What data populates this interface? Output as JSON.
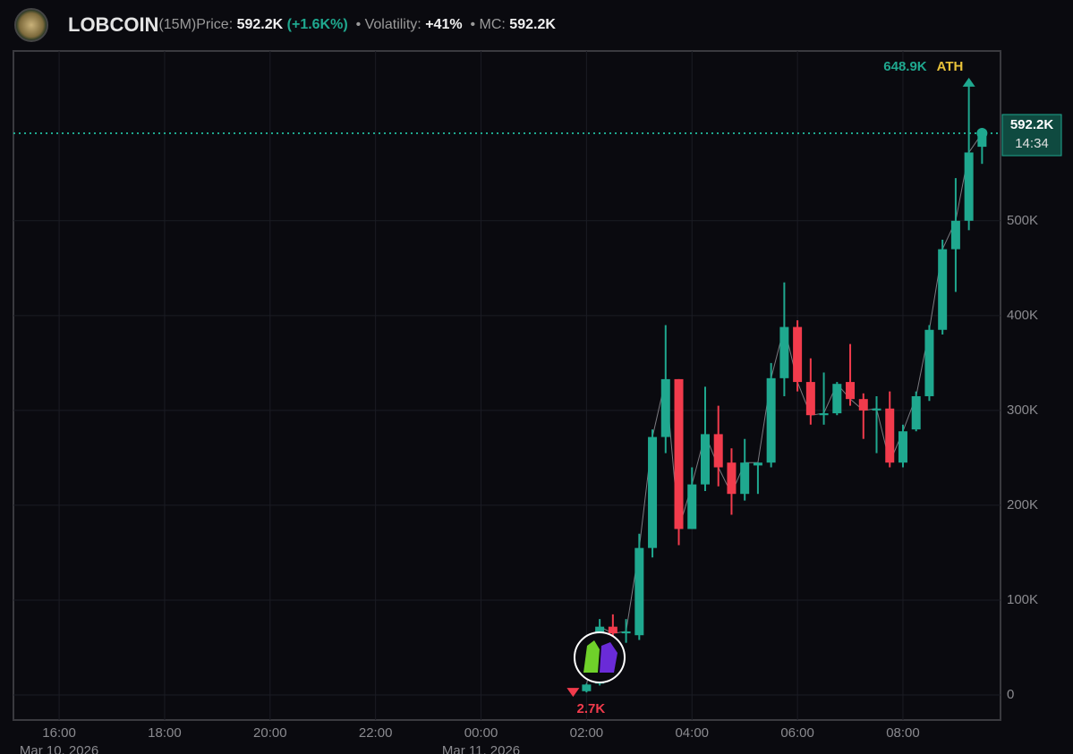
{
  "header": {
    "name": "LOBCOIN",
    "interval": "(15M)",
    "price_label": "Price:",
    "price": "592.2K",
    "change": "(+1.6K%)",
    "volatility_label": "• Volatility:",
    "volatility": "+41%",
    "mc_label": "• MC:",
    "mc": "592.2K"
  },
  "chart_data": {
    "type": "candlestick",
    "x": [
      "2026-03-11T02:00",
      "2026-03-11T02:15",
      "2026-03-11T02:30",
      "2026-03-11T02:45",
      "2026-03-11T03:00",
      "2026-03-11T03:15",
      "2026-03-11T03:30",
      "2026-03-11T03:45",
      "2026-03-11T04:00",
      "2026-03-11T04:15",
      "2026-03-11T04:30",
      "2026-03-11T04:45",
      "2026-03-11T05:00",
      "2026-03-11T05:15",
      "2026-03-11T05:30",
      "2026-03-11T05:45",
      "2026-03-11T06:00",
      "2026-03-11T06:15",
      "2026-03-11T06:30",
      "2026-03-11T06:45",
      "2026-03-11T07:00",
      "2026-03-11T07:15",
      "2026-03-11T07:30",
      "2026-03-11T07:45",
      "2026-03-11T08:00",
      "2026-03-11T08:15",
      "2026-03-11T08:30",
      "2026-03-11T08:45",
      "2026-03-11T09:00",
      "2026-03-11T09:15",
      "2026-03-11T09:30"
    ],
    "open": [
      4000,
      12000,
      72000,
      65000,
      63000,
      155000,
      272000,
      333000,
      175000,
      222000,
      275000,
      245000,
      212000,
      242000,
      245000,
      334000,
      388000,
      330000,
      295000,
      297000,
      330000,
      312000,
      300000,
      302000,
      245000,
      280000,
      315000,
      385000,
      470000,
      500000,
      578000
    ],
    "high": [
      12000,
      80000,
      85000,
      80000,
      170000,
      280000,
      390000,
      333000,
      240000,
      325000,
      305000,
      260000,
      270000,
      245000,
      350000,
      435000,
      395000,
      355000,
      340000,
      330000,
      370000,
      318000,
      315000,
      320000,
      285000,
      320000,
      390000,
      480000,
      545000,
      648900,
      592200
    ],
    "low": [
      2700,
      10000,
      58000,
      55000,
      58000,
      145000,
      255000,
      158000,
      175000,
      215000,
      220000,
      190000,
      205000,
      212000,
      240000,
      315000,
      320000,
      285000,
      285000,
      295000,
      305000,
      270000,
      255000,
      240000,
      240000,
      278000,
      310000,
      380000,
      425000,
      490000,
      560000
    ],
    "close": [
      11000,
      72000,
      65000,
      67000,
      155000,
      272000,
      333000,
      175000,
      222000,
      275000,
      240000,
      212000,
      245000,
      245000,
      334000,
      388000,
      330000,
      295000,
      297000,
      328000,
      312000,
      300000,
      302000,
      245000,
      278000,
      315000,
      385000,
      470000,
      500000,
      572000,
      592200
    ],
    "up_color": "#1fa88f",
    "down_color": "#f23b4c",
    "xlim": [
      "2026-03-10T15:08",
      "2026-03-11T09:51"
    ],
    "xticks": [
      {
        "value": "2026-03-10T16:00",
        "label": "16:00"
      },
      {
        "value": "2026-03-10T18:00",
        "label": "18:00"
      },
      {
        "value": "2026-03-10T20:00",
        "label": "20:00"
      },
      {
        "value": "2026-03-10T22:00",
        "label": "22:00"
      },
      {
        "value": "2026-03-11T00:00",
        "label": "00:00"
      },
      {
        "value": "2026-03-11T02:00",
        "label": "02:00"
      },
      {
        "value": "2026-03-11T04:00",
        "label": "04:00"
      },
      {
        "value": "2026-03-11T06:00",
        "label": "06:00"
      },
      {
        "value": "2026-03-11T08:00",
        "label": "08:00"
      }
    ],
    "date_labels": [
      {
        "value": "2026-03-10T16:00",
        "label": "Mar 10, 2026"
      },
      {
        "value": "2026-03-11T00:00",
        "label": "Mar 11, 2026"
      }
    ],
    "ylim": [
      -26400,
      679000
    ],
    "yticks": [
      0,
      {
        "value": 100000,
        "label": "100K"
      },
      {
        "value": 200000,
        "label": "200K"
      },
      {
        "value": 300000,
        "label": "300K"
      },
      {
        "value": 400000,
        "label": "400K"
      },
      {
        "value": 500000,
        "label": "500K"
      }
    ],
    "grid": true,
    "last_price": {
      "value": 592200,
      "label": "592.2K"
    },
    "countdown": "14:34",
    "ath": {
      "value": 648900,
      "label": "648.9K"
    },
    "ath_text": "ATH",
    "low_marker": {
      "value": 2700,
      "label": "2.7K"
    }
  }
}
